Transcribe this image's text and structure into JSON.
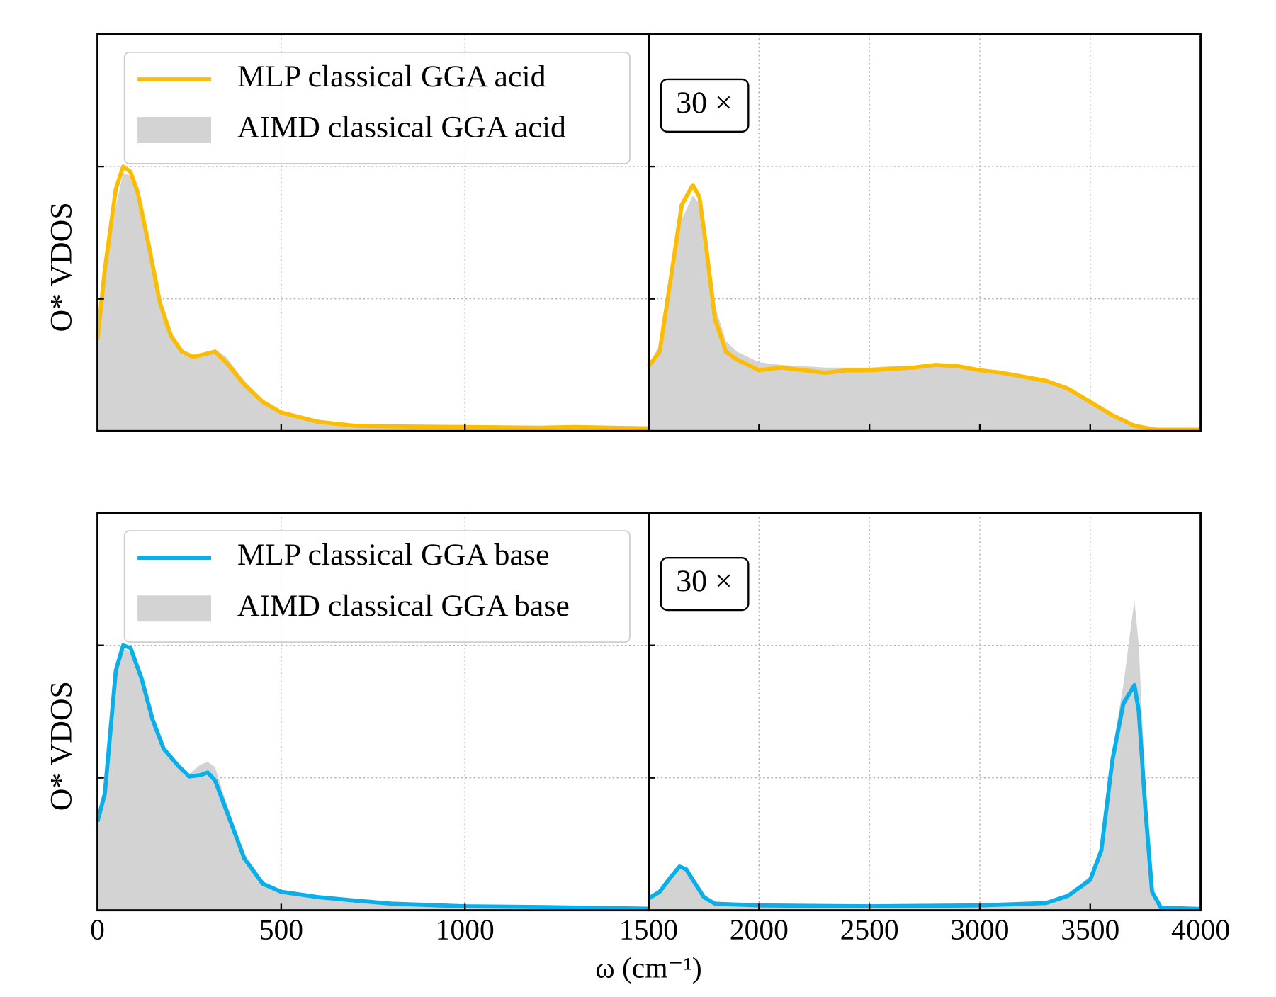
{
  "chart_data": [
    {
      "type": "line",
      "xlim": [
        0,
        1500
      ],
      "ylim": [
        0,
        3
      ],
      "yticks": [
        1,
        2
      ],
      "xticks": [
        500,
        1000
      ],
      "xtick_labels": false,
      "grid": true,
      "ylabel": "O* VDOS",
      "legend": "upper left",
      "x": [
        0,
        20,
        50,
        70,
        90,
        110,
        140,
        170,
        200,
        230,
        260,
        290,
        320,
        350,
        400,
        450,
        500,
        600,
        700,
        800,
        1000,
        1200,
        1300,
        1400,
        1500
      ],
      "series": [
        {
          "name": "MLP classical GGA acid",
          "color": "#fbbc05",
          "kind": "line",
          "values": [
            0.69,
            1.22,
            1.83,
            2.0,
            1.96,
            1.8,
            1.4,
            0.97,
            0.72,
            0.6,
            0.56,
            0.58,
            0.6,
            0.52,
            0.35,
            0.22,
            0.14,
            0.07,
            0.04,
            0.035,
            0.03,
            0.025,
            0.03,
            0.025,
            0.02
          ]
        },
        {
          "name": "AIMD classical GGA acid",
          "color": "#d3d3d3",
          "kind": "area",
          "values": [
            0.7,
            1.15,
            1.7,
            1.95,
            1.93,
            1.78,
            1.38,
            0.95,
            0.7,
            0.58,
            0.55,
            0.58,
            0.62,
            0.56,
            0.38,
            0.24,
            0.15,
            0.07,
            0.04,
            0.035,
            0.03,
            0.025,
            0.03,
            0.025,
            0.02
          ]
        }
      ]
    },
    {
      "type": "line",
      "xlim": [
        1500,
        4000
      ],
      "ylim": [
        0,
        3
      ],
      "yticks": [
        1,
        2
      ],
      "xticks": [
        2000,
        2500,
        3000,
        3500
      ],
      "xtick_labels": false,
      "grid": true,
      "annotation": "30 ×",
      "x": [
        1500,
        1550,
        1600,
        1650,
        1700,
        1730,
        1760,
        1800,
        1850,
        1900,
        2000,
        2100,
        2200,
        2300,
        2400,
        2500,
        2600,
        2700,
        2800,
        2900,
        3000,
        3100,
        3200,
        3300,
        3400,
        3500,
        3600,
        3700,
        3800,
        4000
      ],
      "series": [
        {
          "color": "#fbbc05",
          "kind": "line",
          "values": [
            0.49,
            0.6,
            1.15,
            1.71,
            1.86,
            1.77,
            1.4,
            0.85,
            0.6,
            0.54,
            0.46,
            0.48,
            0.46,
            0.44,
            0.46,
            0.46,
            0.47,
            0.48,
            0.5,
            0.49,
            0.46,
            0.44,
            0.41,
            0.38,
            0.32,
            0.22,
            0.12,
            0.04,
            0.01,
            0.01
          ]
        },
        {
          "color": "#d3d3d3",
          "kind": "area",
          "values": [
            0.5,
            0.65,
            1.1,
            1.6,
            1.78,
            1.72,
            1.42,
            0.95,
            0.68,
            0.6,
            0.52,
            0.5,
            0.49,
            0.48,
            0.48,
            0.48,
            0.49,
            0.49,
            0.5,
            0.49,
            0.47,
            0.45,
            0.42,
            0.38,
            0.32,
            0.22,
            0.12,
            0.04,
            0.01,
            0.01
          ]
        }
      ]
    },
    {
      "type": "line",
      "xlim": [
        0,
        1500
      ],
      "ylim": [
        0,
        3
      ],
      "yticks": [
        1,
        2
      ],
      "xticks": [
        0,
        500,
        1000,
        1500
      ],
      "xtick_labels": true,
      "grid": true,
      "ylabel": "O* VDOS",
      "xlabel": "ω (cm⁻¹)",
      "legend": "upper left",
      "x": [
        0,
        20,
        50,
        70,
        90,
        120,
        150,
        180,
        220,
        250,
        280,
        300,
        320,
        350,
        400,
        450,
        500,
        600,
        700,
        800,
        1000,
        1200,
        1500
      ],
      "series": [
        {
          "name": "MLP classical GGA base",
          "color": "#0aaee8",
          "kind": "line",
          "values": [
            0.67,
            0.88,
            1.81,
            2.0,
            1.98,
            1.75,
            1.44,
            1.22,
            1.09,
            1.01,
            1.02,
            1.04,
            0.98,
            0.76,
            0.39,
            0.2,
            0.14,
            0.1,
            0.074,
            0.05,
            0.03,
            0.025,
            0.012
          ]
        },
        {
          "name": "AIMD classical GGA base",
          "color": "#d3d3d3",
          "kind": "area",
          "values": [
            0.68,
            0.9,
            1.75,
            1.97,
            1.95,
            1.74,
            1.43,
            1.2,
            1.08,
            1.03,
            1.1,
            1.12,
            1.08,
            0.82,
            0.42,
            0.22,
            0.15,
            0.1,
            0.074,
            0.05,
            0.03,
            0.025,
            0.012
          ]
        }
      ]
    },
    {
      "type": "line",
      "xlim": [
        1500,
        4000
      ],
      "ylim": [
        0,
        3
      ],
      "yticks": [
        1,
        2
      ],
      "xticks": [
        2000,
        2500,
        3000,
        3500,
        4000
      ],
      "xtick_labels": true,
      "grid": true,
      "annotation": "30 ×",
      "x": [
        1500,
        1550,
        1600,
        1640,
        1670,
        1700,
        1750,
        1800,
        2000,
        2500,
        3000,
        3300,
        3400,
        3500,
        3550,
        3600,
        3650,
        3700,
        3720,
        3750,
        3780,
        3820,
        4000
      ],
      "series": [
        {
          "color": "#0aaee8",
          "kind": "line",
          "values": [
            0.09,
            0.14,
            0.25,
            0.33,
            0.31,
            0.23,
            0.1,
            0.05,
            0.037,
            0.03,
            0.037,
            0.055,
            0.11,
            0.23,
            0.45,
            1.13,
            1.56,
            1.7,
            1.5,
            0.76,
            0.14,
            0.02,
            0.01
          ]
        },
        {
          "color": "#d3d3d3",
          "kind": "area",
          "values": [
            0.09,
            0.14,
            0.25,
            0.33,
            0.31,
            0.23,
            0.1,
            0.05,
            0.037,
            0.03,
            0.037,
            0.06,
            0.12,
            0.26,
            0.5,
            1.2,
            1.7,
            2.34,
            2.0,
            0.9,
            0.15,
            0.02,
            0.01
          ]
        }
      ]
    }
  ]
}
